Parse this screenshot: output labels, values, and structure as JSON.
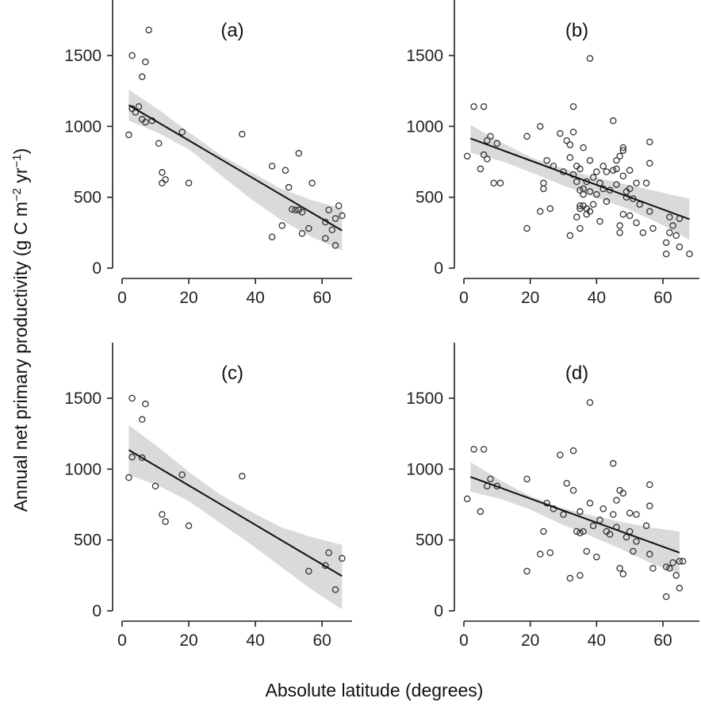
{
  "xlabel": "Absolute latitude (degrees)",
  "ylabel_parts": {
    "main": "Annual net primary productivity (g C m",
    "sup1": "−2",
    "mid": " yr",
    "sup2": "−1",
    "end": ")"
  },
  "chart_data": [
    {
      "type": "scatter",
      "panel_label": "(a)",
      "xlim": [
        -3,
        69
      ],
      "ylim": [
        -40,
        1900
      ],
      "xticks": [
        0,
        20,
        40,
        60
      ],
      "yticks": [
        0,
        500,
        1000,
        1500
      ],
      "fit": {
        "x": [
          2,
          66
        ],
        "y": [
          1150,
          265
        ]
      },
      "ci_upper": [
        1260,
        1115,
        955,
        800,
        680,
        560,
        480,
        420
      ],
      "ci_lower": [
        1040,
        950,
        835,
        660,
        490,
        340,
        220,
        125
      ],
      "points": [
        [
          2,
          940
        ],
        [
          3,
          1500
        ],
        [
          3,
          1125
        ],
        [
          4,
          1100
        ],
        [
          5,
          1140
        ],
        [
          6,
          1350
        ],
        [
          6,
          1050
        ],
        [
          7,
          1455
        ],
        [
          7,
          1030
        ],
        [
          8,
          1680
        ],
        [
          9,
          1040
        ],
        [
          11,
          880
        ],
        [
          12,
          600
        ],
        [
          12,
          675
        ],
        [
          13,
          625
        ],
        [
          18,
          960
        ],
        [
          20,
          600
        ],
        [
          36,
          945
        ],
        [
          45,
          720
        ],
        [
          45,
          220
        ],
        [
          48,
          300
        ],
        [
          49,
          690
        ],
        [
          50,
          570
        ],
        [
          51,
          415
        ],
        [
          52,
          410
        ],
        [
          53,
          410
        ],
        [
          53,
          810
        ],
        [
          54,
          245
        ],
        [
          54,
          395
        ],
        [
          56,
          280
        ],
        [
          57,
          600
        ],
        [
          61,
          210
        ],
        [
          61,
          325
        ],
        [
          62,
          410
        ],
        [
          63,
          270
        ],
        [
          64,
          160
        ],
        [
          64,
          350
        ],
        [
          65,
          440
        ],
        [
          66,
          370
        ]
      ]
    },
    {
      "type": "scatter",
      "panel_label": "(b)",
      "xlim": [
        -3,
        71
      ],
      "ylim": [
        -40,
        1900
      ],
      "xticks": [
        0,
        20,
        40,
        60
      ],
      "yticks": [
        0,
        500,
        1000,
        1500
      ],
      "fit": {
        "x": [
          2,
          68
        ],
        "y": [
          915,
          345
        ]
      },
      "ci_upper": [
        1010,
        885,
        775,
        700,
        640,
        590,
        540,
        490
      ],
      "ci_lower": [
        815,
        755,
        670,
        580,
        500,
        420,
        320,
        200
      ],
      "points": [
        [
          1,
          790
        ],
        [
          3,
          1140
        ],
        [
          5,
          700
        ],
        [
          6,
          1140
        ],
        [
          6,
          800
        ],
        [
          7,
          770
        ],
        [
          7,
          900
        ],
        [
          8,
          930
        ],
        [
          9,
          600
        ],
        [
          10,
          880
        ],
        [
          11,
          600
        ],
        [
          19,
          280
        ],
        [
          19,
          930
        ],
        [
          23,
          400
        ],
        [
          23,
          1000
        ],
        [
          24,
          600
        ],
        [
          24,
          560
        ],
        [
          25,
          760
        ],
        [
          26,
          420
        ],
        [
          27,
          720
        ],
        [
          29,
          950
        ],
        [
          30,
          680
        ],
        [
          31,
          900
        ],
        [
          32,
          780
        ],
        [
          32,
          230
        ],
        [
          32,
          870
        ],
        [
          33,
          1140
        ],
        [
          33,
          960
        ],
        [
          33,
          660
        ],
        [
          34,
          360
        ],
        [
          34,
          720
        ],
        [
          34,
          610
        ],
        [
          35,
          420
        ],
        [
          35,
          700
        ],
        [
          35,
          550
        ],
        [
          35,
          440
        ],
        [
          35,
          280
        ],
        [
          36,
          850
        ],
        [
          36,
          520
        ],
        [
          36,
          440
        ],
        [
          36,
          560
        ],
        [
          37,
          610
        ],
        [
          37,
          380
        ],
        [
          37,
          420
        ],
        [
          38,
          1480
        ],
        [
          38,
          760
        ],
        [
          38,
          540
        ],
        [
          38,
          400
        ],
        [
          39,
          450
        ],
        [
          39,
          640
        ],
        [
          40,
          520
        ],
        [
          40,
          680
        ],
        [
          41,
          330
        ],
        [
          41,
          600
        ],
        [
          42,
          720
        ],
        [
          42,
          560
        ],
        [
          43,
          680
        ],
        [
          43,
          470
        ],
        [
          44,
          550
        ],
        [
          45,
          1040
        ],
        [
          45,
          690
        ],
        [
          46,
          590
        ],
        [
          46,
          760
        ],
        [
          46,
          700
        ],
        [
          47,
          790
        ],
        [
          47,
          300
        ],
        [
          47,
          250
        ],
        [
          48,
          850
        ],
        [
          48,
          830
        ],
        [
          48,
          380
        ],
        [
          48,
          650
        ],
        [
          49,
          500
        ],
        [
          49,
          540
        ],
        [
          50,
          690
        ],
        [
          50,
          560
        ],
        [
          50,
          370
        ],
        [
          51,
          490
        ],
        [
          52,
          600
        ],
        [
          52,
          320
        ],
        [
          53,
          450
        ],
        [
          54,
          250
        ],
        [
          55,
          600
        ],
        [
          56,
          740
        ],
        [
          56,
          400
        ],
        [
          56,
          890
        ],
        [
          57,
          280
        ],
        [
          61,
          100
        ],
        [
          61,
          180
        ],
        [
          62,
          360
        ],
        [
          62,
          250
        ],
        [
          63,
          300
        ],
        [
          64,
          230
        ],
        [
          65,
          150
        ],
        [
          65,
          350
        ],
        [
          68,
          100
        ]
      ]
    },
    {
      "type": "scatter",
      "panel_label": "(c)",
      "xlim": [
        -3,
        69
      ],
      "ylim": [
        -40,
        1900
      ],
      "xticks": [
        0,
        20,
        40,
        60
      ],
      "yticks": [
        0,
        500,
        1000,
        1500
      ],
      "fit": {
        "x": [
          2,
          66
        ],
        "y": [
          1135,
          245
        ]
      },
      "ci_upper": [
        1310,
        1150,
        975,
        820,
        700,
        590,
        520,
        465
      ],
      "ci_lower": [
        960,
        880,
        770,
        620,
        470,
        310,
        150,
        10
      ],
      "points": [
        [
          2,
          940
        ],
        [
          3,
          1500
        ],
        [
          3,
          1085
        ],
        [
          6,
          1350
        ],
        [
          6,
          1080
        ],
        [
          7,
          1460
        ],
        [
          10,
          880
        ],
        [
          12,
          680
        ],
        [
          13,
          630
        ],
        [
          18,
          960
        ],
        [
          20,
          600
        ],
        [
          36,
          950
        ],
        [
          56,
          280
        ],
        [
          61,
          320
        ],
        [
          62,
          410
        ],
        [
          64,
          150
        ],
        [
          66,
          370
        ]
      ]
    },
    {
      "type": "scatter",
      "panel_label": "(d)",
      "xlim": [
        -3,
        71
      ],
      "ylim": [
        -40,
        1900
      ],
      "xticks": [
        0,
        20,
        40,
        60
      ],
      "yticks": [
        0,
        500,
        1000,
        1500
      ],
      "fit": {
        "x": [
          2,
          65
        ],
        "y": [
          945,
          410
        ]
      },
      "ci_upper": [
        1050,
        920,
        810,
        730,
        675,
        630,
        590,
        560
      ],
      "ci_lower": [
        840,
        790,
        715,
        615,
        530,
        440,
        340,
        260
      ],
      "points": [
        [
          1,
          790
        ],
        [
          3,
          1140
        ],
        [
          5,
          700
        ],
        [
          6,
          1140
        ],
        [
          7,
          880
        ],
        [
          8,
          930
        ],
        [
          10,
          880
        ],
        [
          19,
          280
        ],
        [
          19,
          930
        ],
        [
          23,
          400
        ],
        [
          24,
          560
        ],
        [
          25,
          760
        ],
        [
          26,
          410
        ],
        [
          27,
          720
        ],
        [
          29,
          1100
        ],
        [
          30,
          680
        ],
        [
          31,
          900
        ],
        [
          32,
          230
        ],
        [
          33,
          1130
        ],
        [
          33,
          850
        ],
        [
          34,
          560
        ],
        [
          35,
          250
        ],
        [
          35,
          700
        ],
        [
          35,
          550
        ],
        [
          36,
          560
        ],
        [
          37,
          420
        ],
        [
          38,
          1470
        ],
        [
          38,
          760
        ],
        [
          39,
          600
        ],
        [
          40,
          380
        ],
        [
          41,
          640
        ],
        [
          42,
          720
        ],
        [
          43,
          560
        ],
        [
          44,
          540
        ],
        [
          45,
          1040
        ],
        [
          45,
          680
        ],
        [
          46,
          590
        ],
        [
          46,
          780
        ],
        [
          47,
          300
        ],
        [
          47,
          850
        ],
        [
          48,
          260
        ],
        [
          48,
          830
        ],
        [
          49,
          520
        ],
        [
          50,
          690
        ],
        [
          50,
          560
        ],
        [
          51,
          420
        ],
        [
          52,
          490
        ],
        [
          52,
          680
        ],
        [
          55,
          600
        ],
        [
          56,
          740
        ],
        [
          56,
          400
        ],
        [
          56,
          890
        ],
        [
          57,
          300
        ],
        [
          61,
          100
        ],
        [
          61,
          310
        ],
        [
          62,
          300
        ],
        [
          63,
          340
        ],
        [
          64,
          250
        ],
        [
          65,
          160
        ],
        [
          65,
          350
        ],
        [
          66,
          350
        ]
      ]
    }
  ]
}
